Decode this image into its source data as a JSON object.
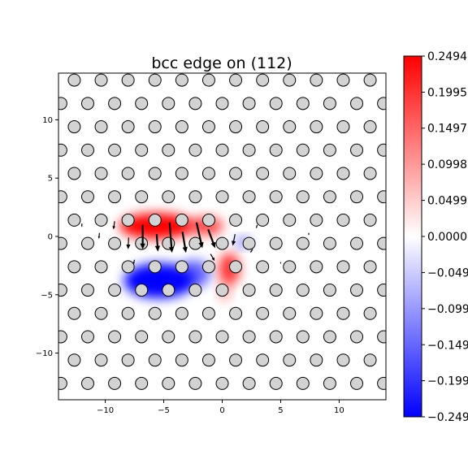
{
  "chart_data": {
    "type": "heatmap",
    "title": "bcc edge on (112)",
    "xlabel": "",
    "ylabel": "",
    "xlim": [
      -14,
      14
    ],
    "ylim": [
      -14,
      14
    ],
    "x_ticks": [
      -10,
      -5,
      0,
      5,
      10
    ],
    "x_tick_labels": [
      "−10",
      "−5",
      "0",
      "5",
      "10"
    ],
    "y_ticks": [
      -10,
      -5,
      0,
      5,
      10
    ],
    "y_tick_labels": [
      "−10",
      "−5",
      "0",
      "5",
      "10"
    ],
    "grid": false,
    "colormap": "bwr",
    "color_range": [
      -0.2494,
      0.2494
    ],
    "colorbar_ticks": [
      0.2494,
      0.1995,
      0.1497,
      0.0998,
      0.0499,
      0.0,
      -0.0499,
      -0.0998,
      -0.1497,
      -0.1995,
      -0.2494
    ],
    "colorbar_tick_labels": [
      "0.2494",
      "0.1995",
      "0.1497",
      "0.0998",
      "0.0499",
      "0.0000",
      "−0.0499",
      "−0.0998",
      "−0.1497",
      "−0.1995",
      "−0.2494"
    ],
    "lattice": {
      "a1": [
        2.3,
        0.0
      ],
      "a2": [
        1.15,
        2.0
      ],
      "origin": [
        0.0,
        -0.6
      ],
      "atom_radius": 0.52,
      "atom_fill": "#d3d3d3",
      "atom_edge": "#000000"
    },
    "positive_lobes": [
      {
        "x": -5.6,
        "y": 0.9,
        "sx": 3.2,
        "sy": 1.1,
        "amp": 0.26
      },
      {
        "x": -1.4,
        "y": 0.9,
        "sx": 1.5,
        "sy": 0.8,
        "amp": 0.18
      },
      {
        "x": 0.6,
        "y": -2.8,
        "sx": 0.9,
        "sy": 1.4,
        "amp": 0.2
      },
      {
        "x": 0.2,
        "y": -4.8,
        "sx": 0.5,
        "sy": 0.7,
        "amp": 0.1
      }
    ],
    "negative_lobes": [
      {
        "x": -5.4,
        "y": -3.8,
        "sx": 3.0,
        "sy": 1.5,
        "amp": 0.27
      },
      {
        "x": -2.4,
        "y": -3.2,
        "sx": 1.4,
        "sy": 1.2,
        "amp": 0.15
      },
      {
        "x": 1.8,
        "y": -0.5,
        "sx": 0.7,
        "sy": 0.45,
        "amp": 0.12
      }
    ],
    "arrows": [
      {
        "x": -6.8,
        "y": 1.0,
        "u": 0.0,
        "v": -2.1
      },
      {
        "x": -4.5,
        "y": 1.2,
        "u": 0.2,
        "v": -2.6
      },
      {
        "x": -2.2,
        "y": 1.2,
        "u": 0.5,
        "v": -2.2
      },
      {
        "x": -5.6,
        "y": 0.2,
        "u": 0.1,
        "v": -1.5
      },
      {
        "x": -3.4,
        "y": 0.4,
        "u": 0.3,
        "v": -1.8
      },
      {
        "x": -1.2,
        "y": 0.6,
        "u": 0.6,
        "v": -1.6
      },
      {
        "x": -8.0,
        "y": -0.1,
        "u": -0.05,
        "v": -1.0
      },
      {
        "x": 1.1,
        "y": 0.2,
        "u": -0.2,
        "v": -1.0
      },
      {
        "x": -9.2,
        "y": 1.3,
        "u": -0.1,
        "v": -0.7
      },
      {
        "x": -10.5,
        "y": 0.3,
        "u": -0.05,
        "v": -0.5
      },
      {
        "x": -12.0,
        "y": 1.1,
        "u": 0.0,
        "v": -0.3
      },
      {
        "x": -7.5,
        "y": -2.0,
        "u": -0.1,
        "v": -0.4
      },
      {
        "x": -1.0,
        "y": -1.5,
        "u": 0.35,
        "v": -0.6
      },
      {
        "x": 2.6,
        "y": -1.1,
        "u": -0.2,
        "v": -0.3
      },
      {
        "x": 3.0,
        "y": 1.0,
        "u": -0.1,
        "v": -0.3
      },
      {
        "x": 7.4,
        "y": 0.3,
        "u": 0.0,
        "v": -0.2
      },
      {
        "x": 5.0,
        "y": -2.2,
        "u": 0.0,
        "v": -0.15
      }
    ]
  }
}
